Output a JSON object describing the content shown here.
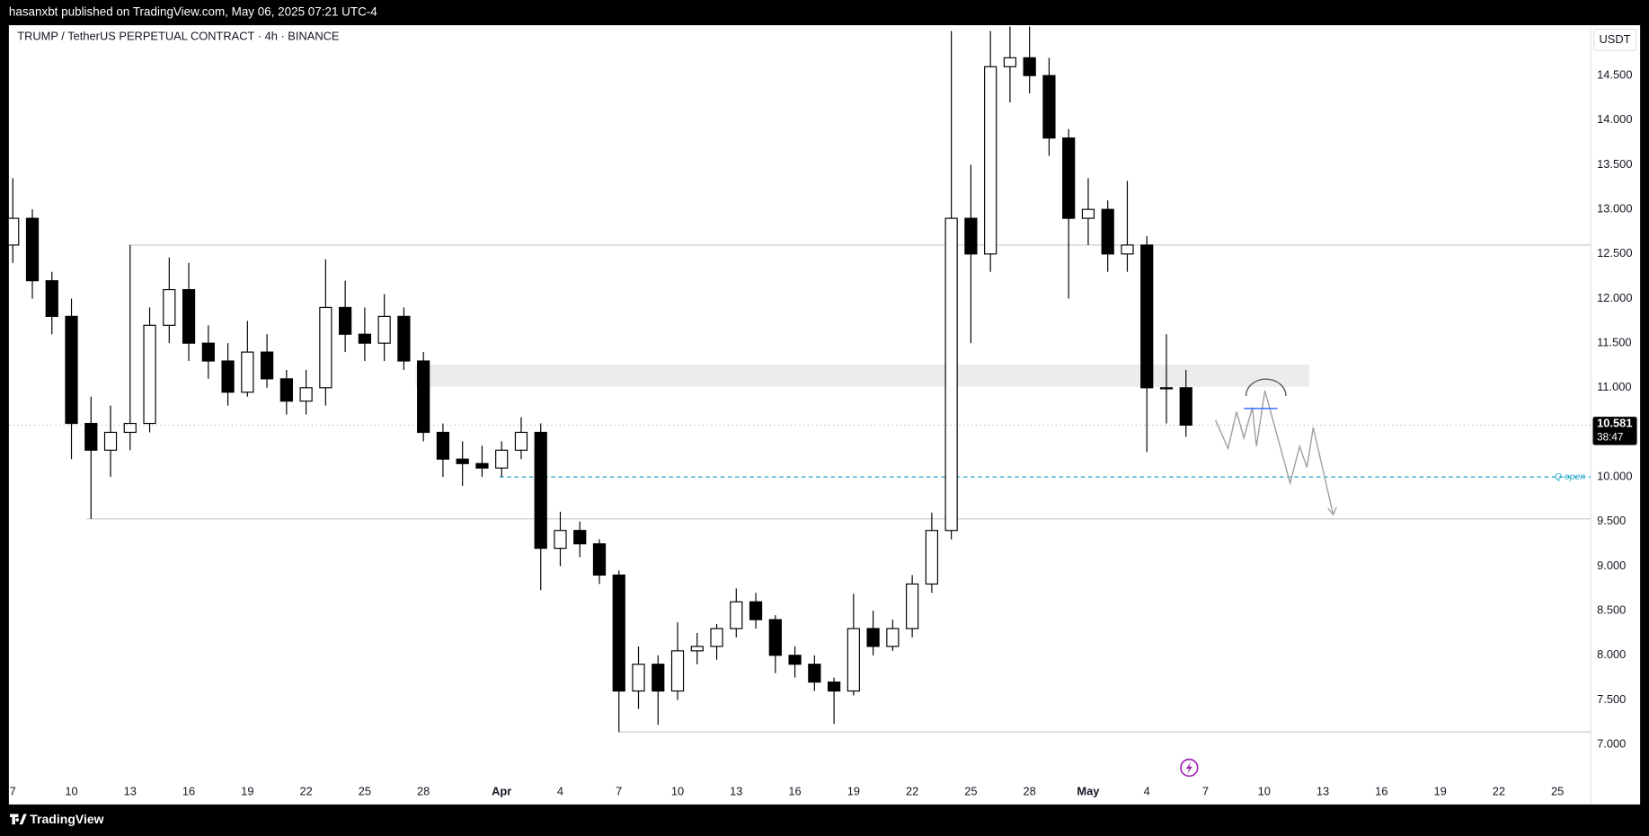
{
  "header": {
    "publisher": "hasanxbt published on TradingView.com, May 06, 2025 07:21 UTC-4"
  },
  "footer": {
    "brand": "TradingView"
  },
  "chart_data": {
    "type": "candlestick",
    "title": "TRUMP / TetherUS PERPETUAL CONTRACT · 4h · BINANCE",
    "currency": "USDT",
    "up_color": "#ffffff",
    "down_color": "#000000",
    "border_color": "#000000",
    "x": [
      0,
      1,
      2,
      3,
      4,
      5,
      6,
      7,
      8,
      9,
      10,
      11,
      12,
      13,
      14,
      15,
      16,
      17,
      18,
      19,
      20,
      21,
      22,
      23,
      24,
      25,
      26,
      27,
      28,
      29,
      30,
      31,
      32,
      33,
      34,
      35,
      36,
      37,
      38,
      39,
      40,
      41,
      42,
      43,
      44,
      45,
      46,
      47,
      48,
      49,
      50,
      51,
      52,
      53,
      54,
      55,
      56,
      57,
      58,
      59,
      60
    ],
    "open": [
      12.6,
      12.9,
      12.2,
      11.8,
      10.6,
      10.3,
      10.5,
      10.6,
      11.7,
      12.1,
      11.5,
      11.3,
      10.95,
      11.4,
      11.1,
      10.85,
      11.0,
      11.9,
      11.6,
      11.5,
      11.8,
      11.3,
      10.5,
      10.2,
      10.15,
      10.1,
      10.3,
      10.5,
      9.2,
      9.4,
      9.25,
      8.9,
      7.6,
      7.9,
      7.6,
      8.05,
      8.1,
      8.3,
      8.6,
      8.4,
      8.0,
      7.9,
      7.7,
      7.6,
      8.3,
      8.1,
      8.3,
      8.8,
      9.4,
      12.9,
      12.5,
      14.6,
      14.7,
      14.5,
      13.8,
      12.9,
      13.0,
      12.5,
      12.6,
      11.0,
      11.0
    ],
    "high": [
      13.35,
      13.0,
      12.3,
      12.0,
      10.9,
      10.8,
      12.6,
      11.9,
      12.46,
      12.4,
      11.7,
      11.5,
      11.75,
      11.6,
      11.2,
      11.2,
      12.44,
      12.2,
      11.9,
      12.05,
      11.9,
      11.4,
      10.6,
      10.4,
      10.35,
      10.4,
      10.67,
      10.6,
      9.61,
      9.5,
      9.3,
      8.95,
      8.1,
      8.0,
      8.37,
      8.25,
      8.35,
      8.75,
      8.7,
      8.45,
      8.1,
      8.0,
      7.75,
      8.69,
      8.5,
      8.4,
      8.9,
      9.6,
      15.0,
      13.5,
      15.0,
      15.05,
      15.05,
      14.7,
      13.9,
      13.35,
      13.1,
      13.32,
      12.7,
      11.6,
      11.2
    ],
    "low": [
      12.4,
      12.0,
      11.6,
      10.2,
      9.53,
      10.0,
      10.3,
      10.5,
      11.5,
      11.3,
      11.1,
      10.8,
      10.9,
      11.0,
      10.7,
      10.7,
      10.8,
      11.4,
      11.3,
      11.3,
      11.2,
      10.4,
      10.0,
      9.9,
      10.0,
      10.0,
      10.2,
      8.73,
      9.0,
      9.1,
      8.8,
      7.14,
      7.4,
      7.22,
      7.5,
      7.9,
      7.95,
      8.2,
      8.3,
      7.8,
      7.75,
      7.6,
      7.23,
      7.55,
      8.0,
      8.05,
      8.2,
      8.7,
      9.3,
      11.5,
      12.3,
      14.2,
      14.3,
      13.6,
      12.0,
      12.6,
      12.3,
      12.3,
      10.28,
      10.6,
      10.45
    ],
    "close": [
      12.9,
      12.2,
      11.8,
      10.6,
      10.3,
      10.5,
      10.6,
      11.7,
      12.1,
      11.5,
      11.3,
      10.95,
      11.4,
      11.1,
      10.85,
      11.0,
      11.9,
      11.6,
      11.5,
      11.8,
      11.3,
      10.5,
      10.2,
      10.15,
      10.1,
      10.3,
      10.5,
      9.2,
      9.4,
      9.25,
      8.9,
      7.6,
      7.9,
      7.6,
      8.05,
      8.1,
      8.3,
      8.6,
      8.4,
      8.0,
      7.9,
      7.7,
      7.6,
      8.3,
      8.1,
      8.3,
      8.8,
      9.4,
      12.9,
      12.5,
      14.6,
      14.7,
      14.5,
      13.8,
      12.9,
      13.0,
      12.5,
      12.6,
      11.0,
      11.0,
      10.581
    ],
    "xlim": [
      -0.2,
      80.7
    ],
    "ylim": [
      6.61,
      15.065
    ],
    "xticks": [
      {
        "value": 0,
        "label": "7"
      },
      {
        "value": 3,
        "label": "10"
      },
      {
        "value": 6,
        "label": "13"
      },
      {
        "value": 9,
        "label": "16"
      },
      {
        "value": 12,
        "label": "19"
      },
      {
        "value": 15,
        "label": "22"
      },
      {
        "value": 18,
        "label": "25"
      },
      {
        "value": 21,
        "label": "28"
      },
      {
        "value": 25,
        "label": "Apr"
      },
      {
        "value": 28,
        "label": "4"
      },
      {
        "value": 31,
        "label": "7"
      },
      {
        "value": 34,
        "label": "10"
      },
      {
        "value": 37,
        "label": "13"
      },
      {
        "value": 40,
        "label": "16"
      },
      {
        "value": 43,
        "label": "19"
      },
      {
        "value": 46,
        "label": "22"
      },
      {
        "value": 49,
        "label": "25"
      },
      {
        "value": 52,
        "label": "28"
      },
      {
        "value": 55,
        "label": "May"
      },
      {
        "value": 58,
        "label": "4"
      },
      {
        "value": 61,
        "label": "7"
      },
      {
        "value": 64,
        "label": "10"
      },
      {
        "value": 67,
        "label": "13"
      },
      {
        "value": 70,
        "label": "16"
      },
      {
        "value": 73,
        "label": "19"
      },
      {
        "value": 76,
        "label": "22"
      },
      {
        "value": 79,
        "label": "25"
      }
    ],
    "yticks": [
      {
        "value": 7,
        "label": "7.000"
      },
      {
        "value": 7.5,
        "label": "7.500"
      },
      {
        "value": 8,
        "label": "8.000"
      },
      {
        "value": 8.5,
        "label": "8.500"
      },
      {
        "value": 9,
        "label": "9.000"
      },
      {
        "value": 9.5,
        "label": "9.500"
      },
      {
        "value": 10,
        "label": "10.000"
      },
      {
        "value": 10.5,
        "label": "10.500"
      },
      {
        "value": 11,
        "label": "11.000"
      },
      {
        "value": 11.5,
        "label": "11.500"
      },
      {
        "value": 12,
        "label": "12.000"
      },
      {
        "value": 12.5,
        "label": "12.500"
      },
      {
        "value": 13,
        "label": "13.000"
      },
      {
        "value": 13.5,
        "label": "13.500"
      },
      {
        "value": 14,
        "label": "14.000"
      },
      {
        "value": 14.5,
        "label": "14.500"
      }
    ],
    "last_price": 10.581,
    "countdown": "38:47",
    "levels": [
      {
        "value": 12.6,
        "from": 5.9
      },
      {
        "value": 9.53,
        "from": 3.76
      },
      {
        "value": 7.14,
        "from": 31
      }
    ],
    "level_color": "#c8c8c8",
    "zone": {
      "low": 11.01,
      "high": 11.26,
      "from": 20.6,
      "to": 66.3,
      "color": "#ececec"
    },
    "open_line": {
      "value": 10.0,
      "from": 24.9,
      "label": "Q open",
      "color": "#22a6c9"
    }
  }
}
